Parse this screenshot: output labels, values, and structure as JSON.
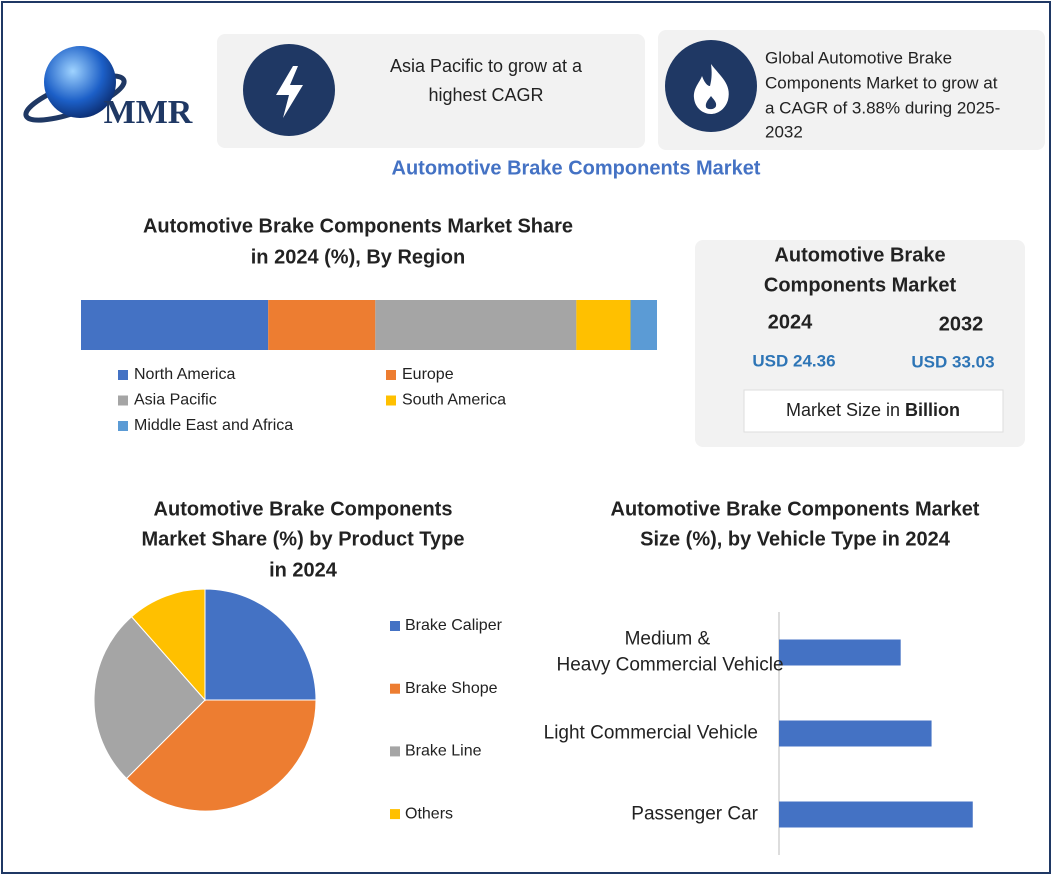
{
  "logo": "MMR",
  "header": {
    "card_1": [
      "Asia Pacific to grow at a",
      "highest CAGR"
    ],
    "card_2": [
      "Global Automotive Brake",
      "Components Market to grow at",
      "a CAGR of 3.88% during 2025-",
      "2032"
    ],
    "title": "Automotive Brake Components Market"
  },
  "market_box": {
    "title": [
      "Automotive Brake",
      "Components Market"
    ],
    "years": [
      "2024",
      "2032"
    ],
    "values": [
      "USD 24.36",
      "USD 33.03"
    ],
    "unit_text": "Market Size in",
    "unit_bold": "Billion"
  },
  "chart_data": [
    {
      "type": "bar",
      "orientation": "horizontal",
      "stacked": true,
      "title": [
        "Automotive Brake Components Market Share",
        "in 2024 (%), By Region"
      ],
      "xlim": [
        0,
        100
      ],
      "series": [
        {
          "name": "North America",
          "color": "#4472c4",
          "values": [
            32.5
          ]
        },
        {
          "name": "Europe",
          "color": "#ed7d31",
          "values": [
            18.6
          ]
        },
        {
          "name": "Asia Pacific",
          "color": "#a5a5a5",
          "values": [
            34.9
          ]
        },
        {
          "name": "South America",
          "color": "#ffc000",
          "values": [
            9.4
          ]
        },
        {
          "name": "Middle East and Africa",
          "color": "#5b9bd5",
          "values": [
            4.6
          ]
        }
      ]
    },
    {
      "type": "pie",
      "title": [
        "Automotive Brake Components",
        "Market  Share (%) by Product Type",
        "in 2024"
      ],
      "categories": [
        "Brake Caliper",
        "Brake Shope",
        "Brake Line",
        "Others"
      ],
      "values": [
        25,
        37.5,
        26,
        11.5
      ],
      "colors": [
        "#4472c4",
        "#ed7d31",
        "#a5a5a5",
        "#ffc000"
      ]
    },
    {
      "type": "bar",
      "orientation": "horizontal",
      "stacked": false,
      "title": [
        "Automotive Brake Components Market",
        "Size (%), by Vehicle Type in 2024"
      ],
      "categories": [
        "Medium & Heavy Commercial Vehicle",
        "Light Commercial Vehicle",
        "Passenger Car"
      ],
      "values": [
        26,
        32.6,
        41.4
      ],
      "color": "#4472c4",
      "xlim": [
        0,
        50
      ]
    }
  ]
}
